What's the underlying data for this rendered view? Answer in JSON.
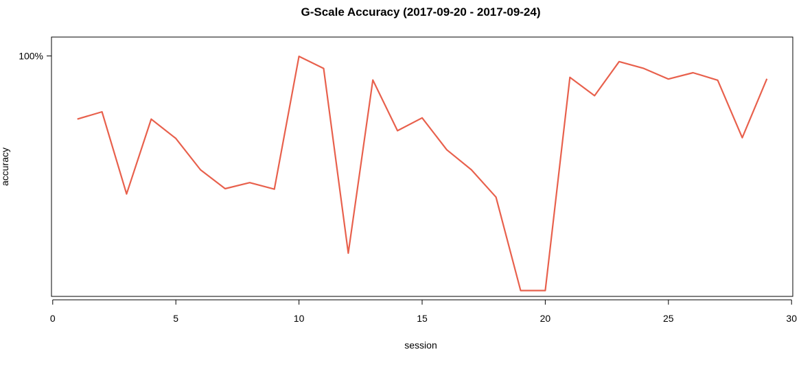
{
  "chart_data": {
    "type": "line",
    "title": "G-Scale Accuracy (2017-09-20 - 2017-09-24)",
    "xlabel": "session",
    "ylabel": "accuracy",
    "xlim": [
      -0.05,
      30.05
    ],
    "ylim": [
      0.0,
      1.0
    ],
    "x_ticks": [
      0,
      5,
      10,
      15,
      20,
      25,
      30
    ],
    "y_ticks": [
      {
        "value": 0.9615,
        "label": "100%"
      }
    ],
    "grid": false,
    "legend": "none",
    "color": "#e8604c",
    "series": [
      {
        "x": [
          1,
          2,
          3,
          4,
          5,
          6,
          7,
          8,
          9,
          10,
          11,
          12,
          13,
          14,
          15,
          16,
          17,
          18,
          19,
          20,
          21,
          22,
          23,
          24,
          25,
          26,
          27,
          28,
          29
        ],
        "values": [
          0.7,
          0.73,
          0.39,
          0.7,
          0.62,
          0.49,
          0.412,
          0.437,
          0.41,
          0.96,
          0.91,
          0.145,
          0.862,
          0.652,
          0.705,
          0.573,
          0.49,
          0.377,
          -0.01,
          -0.01,
          0.873,
          0.797,
          0.938,
          0.91,
          0.866,
          0.892,
          0.861,
          0.623,
          0.867
        ]
      }
    ]
  }
}
